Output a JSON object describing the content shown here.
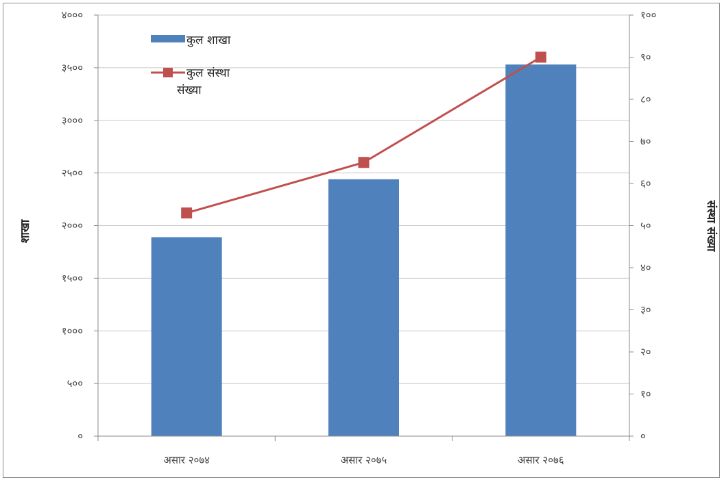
{
  "chart_data": {
    "type": "bar",
    "categories": [
      "असार २०७४",
      "असार २०७५",
      "असार २०७६"
    ],
    "series": [
      {
        "name": "कुल शाखा",
        "type": "bar",
        "axis": "left",
        "color": "#4F81BD",
        "values": [
          1890,
          2440,
          3530
        ]
      },
      {
        "name": "कुल संस्था संख्या",
        "type": "line",
        "axis": "right",
        "color": "#C0504D",
        "marker": "square",
        "values": [
          53,
          65,
          90
        ]
      }
    ],
    "ylabel": "शाखा",
    "y2label": "संस्था संख्या",
    "ylim": [
      0,
      4000
    ],
    "y2lim": [
      0,
      100
    ],
    "yticks": [
      "०",
      "५००",
      "१०००",
      "१५००",
      "२०००",
      "२५००",
      "३०००",
      "३५००",
      "४०००"
    ],
    "y2ticks": [
      "०",
      "१०",
      "२०",
      "३०",
      "४०",
      "५०",
      "६०",
      "७०",
      "८०",
      "९०",
      "१००"
    ],
    "grid": true,
    "legend": "top-left"
  }
}
